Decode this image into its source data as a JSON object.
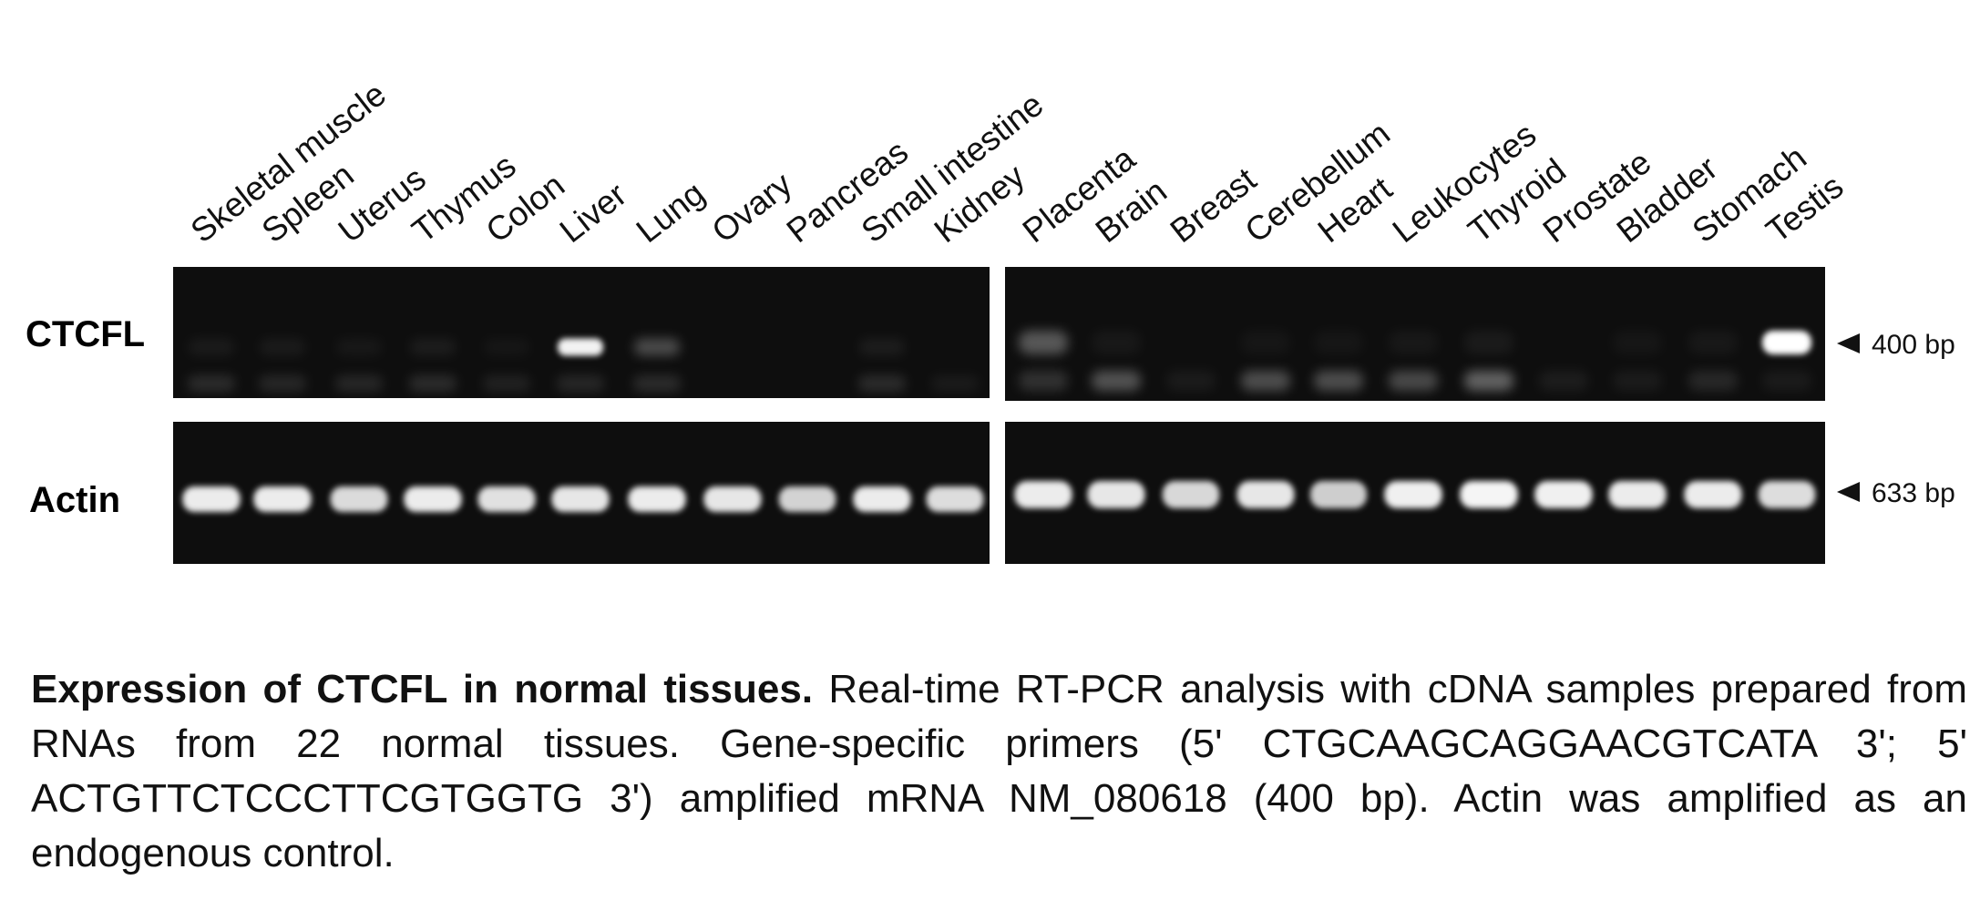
{
  "figure": {
    "lanes_left": [
      "Skeletal muscle",
      "Spleen",
      "Uterus",
      "Thymus",
      "Colon",
      "Liver",
      "Lung",
      "Ovary",
      "Pancreas",
      "Small intestine",
      "Kidney"
    ],
    "lanes_right": [
      "Placenta",
      "Brain",
      "Breast",
      "Cerebellum",
      "Heart",
      "Leukocytes",
      "Thyroid",
      "Prostate",
      "Bladder",
      "Stomach",
      "Testis"
    ],
    "rows": [
      {
        "name": "CTCFL",
        "marker": "400 bp",
        "band_intensity_left": [
          0.05,
          0.05,
          0.04,
          0.06,
          0.03,
          0.95,
          0.25,
          0.0,
          0.0,
          0.06,
          0.0
        ],
        "band_intensity_right": [
          0.3,
          0.04,
          0.0,
          0.03,
          0.03,
          0.04,
          0.05,
          0.0,
          0.03,
          0.04,
          1.0
        ],
        "low_band_intensity_left": [
          0.12,
          0.1,
          0.1,
          0.12,
          0.08,
          0.1,
          0.12,
          0.0,
          0.0,
          0.12,
          0.05
        ],
        "low_band_intensity_right": [
          0.14,
          0.28,
          0.05,
          0.26,
          0.26,
          0.24,
          0.34,
          0.06,
          0.05,
          0.1,
          0.05
        ]
      },
      {
        "name": "Actin",
        "marker": "633 bp",
        "band_intensity_left": [
          0.92,
          0.92,
          0.85,
          0.92,
          0.88,
          0.9,
          0.92,
          0.9,
          0.82,
          0.92,
          0.86
        ],
        "band_intensity_right": [
          0.92,
          0.9,
          0.84,
          0.9,
          0.8,
          0.94,
          0.96,
          0.94,
          0.92,
          0.92,
          0.86
        ]
      }
    ]
  },
  "caption": {
    "title": "Expression of CTCFL in normal tissues.",
    "body": "Real-time RT-PCR analysis with cDNA samples prepared from RNAs from 22 normal tissues. Gene-specific primers (5' CTGCAAGCAGGAACGTCATA 3'; 5' ACTGTTCTCCCTTCGTGGTG 3') amplified mRNA NM_080618 (400 bp). Actin was amplified as an endogenous control."
  },
  "colors": {
    "gel_background": "#0e0e0e",
    "band": "#ffffff",
    "text": "#111111"
  }
}
